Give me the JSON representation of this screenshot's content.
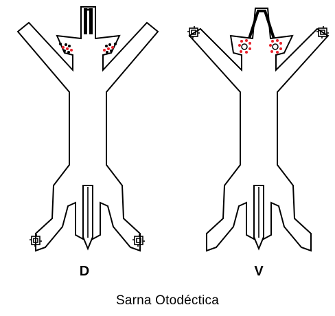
{
  "views": {
    "dorsal": {
      "label": "D"
    },
    "ventral": {
      "label": "V"
    }
  },
  "caption": "Sarna Otodéctica",
  "colors": {
    "outline": "#000000",
    "lesion_red": "#e8202a",
    "lesion_dark": "#000000"
  }
}
